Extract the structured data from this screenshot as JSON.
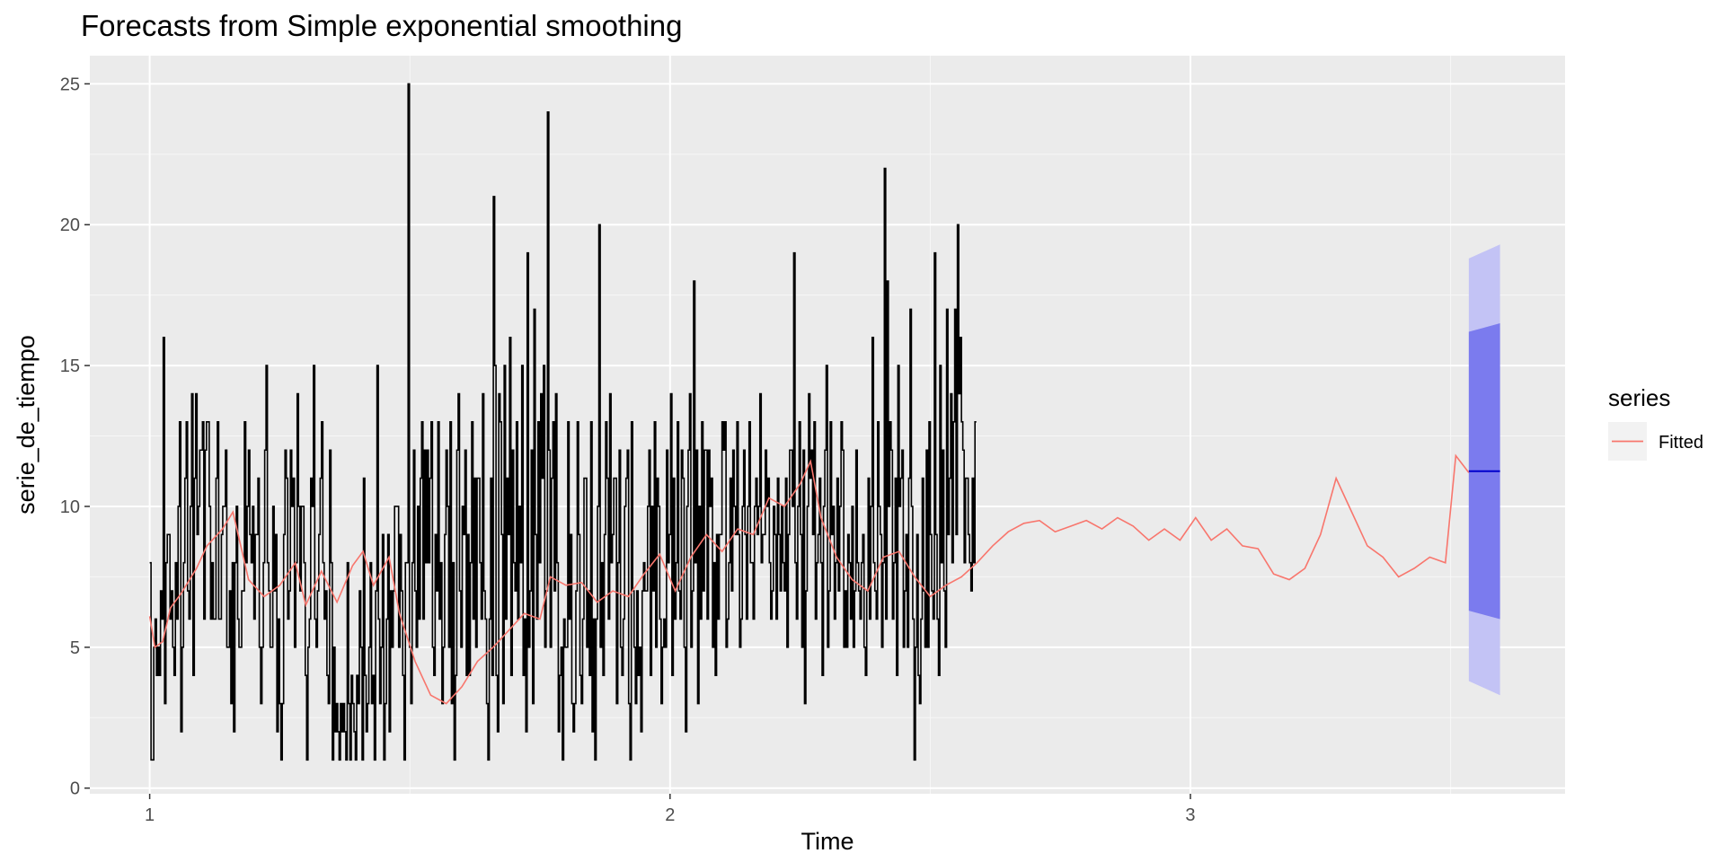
{
  "chart_data": {
    "type": "line",
    "title": "Forecasts from Simple exponential smoothing",
    "xlabel": "Time",
    "ylabel": "serie_de_tiempo",
    "xlim": [
      0.885,
      3.72
    ],
    "ylim": [
      -0.2,
      26.0
    ],
    "x_ticks": [
      1,
      2,
      3
    ],
    "x_tick_labels": [
      "1",
      "2",
      "3"
    ],
    "y_ticks": [
      0,
      5,
      10,
      15,
      20,
      25
    ],
    "y_tick_labels": [
      "0",
      "5",
      "10",
      "15",
      "20",
      "25"
    ],
    "grid": true,
    "legend": {
      "title": "series",
      "position": "right",
      "entries": [
        {
          "label": "Fitted",
          "color": "#F8766D"
        }
      ]
    },
    "colors": {
      "panel": "#EBEBEB",
      "grid_major": "#FFFFFF",
      "data": "#000000",
      "fitted": "#F8766D",
      "forecast_line": "#0000CC",
      "band_80": "#7B7BEE",
      "band_95": "#C3C3F5"
    },
    "data_series": {
      "name": "serie_de_tiempo",
      "x_start": 1.0,
      "x_step": 0.0026,
      "values": [
        8,
        1,
        1,
        5,
        6,
        4,
        5,
        4,
        7,
        6,
        16,
        3,
        8,
        9,
        9,
        6,
        7,
        5,
        4,
        8,
        6,
        10,
        13,
        2,
        5,
        8,
        11,
        13,
        7,
        6,
        10,
        14,
        4,
        11,
        14,
        9,
        10,
        12,
        12,
        13,
        6,
        12,
        13,
        13,
        10,
        6,
        8,
        6,
        6,
        11,
        13,
        6,
        6,
        9,
        10,
        10,
        12,
        5,
        5,
        7,
        3,
        8,
        2,
        8,
        10,
        6,
        5,
        5,
        7,
        7,
        13,
        8,
        10,
        12,
        9,
        8,
        10,
        6,
        9,
        9,
        11,
        5,
        3,
        5,
        8,
        12,
        15,
        8,
        7,
        5,
        5,
        10,
        7,
        9,
        2,
        6,
        3,
        1,
        3,
        9,
        12,
        11,
        6,
        7,
        12,
        10,
        11,
        5,
        8,
        14,
        10,
        7,
        10,
        10,
        8,
        4,
        1,
        5,
        6,
        11,
        10,
        15,
        6,
        5,
        7,
        9,
        11,
        13,
        8,
        6,
        7,
        4,
        3,
        12,
        8,
        1,
        5,
        2,
        3,
        2,
        1,
        3,
        2,
        3,
        2,
        1,
        8,
        3,
        1,
        4,
        3,
        2,
        1,
        4,
        3,
        7,
        5,
        1,
        11,
        4,
        2,
        3,
        5,
        8,
        3,
        4,
        1,
        7,
        15,
        6,
        3,
        5,
        9,
        1,
        3,
        6,
        9,
        2,
        7,
        5,
        7,
        10,
        10,
        10,
        5,
        9,
        7,
        4,
        1,
        8,
        8,
        25,
        5,
        3,
        8,
        12,
        7,
        5,
        10,
        6,
        11,
        13,
        6,
        12,
        8,
        12,
        8,
        11,
        13,
        5,
        4,
        9,
        7,
        13,
        6,
        8,
        3,
        5,
        9,
        12,
        10,
        5,
        13,
        3,
        8,
        1,
        4,
        12,
        14,
        7,
        5,
        10,
        9,
        12,
        4,
        9,
        4,
        8,
        13,
        6,
        11,
        5,
        11,
        11,
        8,
        6,
        14,
        7,
        6,
        3,
        1,
        6,
        11,
        4,
        21,
        15,
        4,
        2,
        14,
        13,
        9,
        3,
        15,
        6,
        11,
        9,
        16,
        4,
        12,
        8,
        7,
        13,
        6,
        10,
        8,
        15,
        4,
        6,
        2,
        19,
        5,
        7,
        12,
        3,
        17,
        9,
        6,
        13,
        8,
        14,
        11,
        15,
        5,
        7,
        24,
        12,
        5,
        11,
        13,
        7,
        14,
        8,
        2,
        4,
        5,
        1,
        6,
        5,
        5,
        13,
        6,
        9,
        3,
        2,
        3,
        7,
        13,
        9,
        4,
        3,
        6,
        11,
        11,
        5,
        7,
        4,
        13,
        2,
        6,
        1,
        6,
        10,
        20,
        5,
        8,
        4,
        9,
        13,
        11,
        6,
        14,
        8,
        9,
        11,
        11,
        3,
        8,
        12,
        5,
        4,
        6,
        10,
        11,
        12,
        3,
        1,
        13,
        7,
        5,
        3,
        7,
        4,
        5,
        2,
        7,
        8,
        7,
        7,
        10,
        12,
        4,
        10,
        7,
        13,
        5,
        11,
        10,
        6,
        3,
        5,
        6,
        5,
        12,
        8,
        9,
        14,
        4,
        11,
        6,
        8,
        13,
        7,
        6,
        12,
        11,
        5,
        2,
        10,
        12,
        14,
        5,
        7,
        18,
        8,
        12,
        3,
        10,
        6,
        13,
        7,
        12,
        12,
        6,
        12,
        10,
        11,
        5,
        8,
        4,
        9,
        6,
        9,
        9,
        13,
        12,
        13,
        5,
        6,
        8,
        11,
        7,
        12,
        10,
        9,
        13,
        9,
        5,
        6,
        10,
        12,
        9,
        6,
        10,
        13,
        8,
        8,
        6,
        10,
        11,
        9,
        10,
        14,
        8,
        9,
        9,
        12,
        10,
        11,
        8,
        6,
        7,
        10,
        9,
        6,
        11,
        9,
        7,
        10,
        8,
        7,
        11,
        5,
        9,
        12,
        12,
        10,
        19,
        8,
        6,
        10,
        13,
        9,
        5,
        12,
        3,
        7,
        10,
        14,
        11,
        12,
        9,
        13,
        6,
        8,
        9,
        11,
        8,
        4,
        10,
        12,
        15,
        5,
        7,
        13,
        9,
        10,
        6,
        8,
        11,
        7,
        10,
        13,
        12,
        5,
        7,
        5,
        9,
        8,
        6,
        10,
        5,
        7,
        12,
        8,
        7,
        6,
        8,
        9,
        5,
        4,
        7,
        11,
        6,
        10,
        16,
        8,
        7,
        6,
        13,
        10,
        9,
        5,
        8,
        22,
        6,
        18,
        10,
        13,
        12,
        6,
        8,
        11,
        4,
        15,
        10,
        11,
        12,
        5,
        7,
        9,
        5,
        11,
        17,
        10,
        6,
        1,
        5,
        9,
        4,
        3,
        6,
        11,
        7,
        5,
        12,
        5,
        13,
        9,
        7,
        6,
        19,
        9,
        6,
        4,
        15,
        8,
        12,
        7,
        5,
        17,
        9,
        11,
        14,
        8,
        13,
        17,
        9,
        20,
        14,
        16,
        13,
        12,
        8,
        11,
        11,
        9,
        8,
        7,
        11,
        8,
        13
      ]
    },
    "fitted_series": {
      "name": "Fitted",
      "points": [
        [
          1.0,
          6.1
        ],
        [
          1.01,
          5.0
        ],
        [
          1.025,
          5.2
        ],
        [
          1.04,
          6.4
        ],
        [
          1.06,
          6.9
        ],
        [
          1.09,
          7.8
        ],
        [
          1.11,
          8.6
        ],
        [
          1.14,
          9.2
        ],
        [
          1.16,
          9.8
        ],
        [
          1.19,
          7.4
        ],
        [
          1.22,
          6.8
        ],
        [
          1.25,
          7.2
        ],
        [
          1.28,
          8.0
        ],
        [
          1.3,
          6.5
        ],
        [
          1.33,
          7.7
        ],
        [
          1.36,
          6.6
        ],
        [
          1.39,
          7.9
        ],
        [
          1.41,
          8.4
        ],
        [
          1.43,
          7.2
        ],
        [
          1.46,
          8.2
        ],
        [
          1.48,
          6.2
        ],
        [
          1.51,
          4.5
        ],
        [
          1.54,
          3.3
        ],
        [
          1.57,
          3.0
        ],
        [
          1.6,
          3.6
        ],
        [
          1.63,
          4.5
        ],
        [
          1.66,
          5.0
        ],
        [
          1.69,
          5.6
        ],
        [
          1.72,
          6.2
        ],
        [
          1.75,
          6.0
        ],
        [
          1.77,
          7.5
        ],
        [
          1.8,
          7.2
        ],
        [
          1.83,
          7.3
        ],
        [
          1.86,
          6.6
        ],
        [
          1.89,
          7.0
        ],
        [
          1.92,
          6.8
        ],
        [
          1.95,
          7.6
        ],
        [
          1.98,
          8.3
        ],
        [
          2.01,
          7.0
        ],
        [
          2.04,
          8.2
        ],
        [
          2.07,
          9.0
        ],
        [
          2.1,
          8.4
        ],
        [
          2.13,
          9.2
        ],
        [
          2.16,
          9.0
        ],
        [
          2.19,
          10.3
        ],
        [
          2.22,
          10.0
        ],
        [
          2.25,
          10.8
        ],
        [
          2.27,
          11.6
        ],
        [
          2.29,
          9.6
        ],
        [
          2.32,
          8.2
        ],
        [
          2.35,
          7.4
        ],
        [
          2.38,
          7.0
        ],
        [
          2.41,
          8.2
        ],
        [
          2.44,
          8.4
        ],
        [
          2.47,
          7.5
        ],
        [
          2.5,
          6.8
        ],
        [
          2.53,
          7.2
        ],
        [
          2.56,
          7.5
        ],
        [
          2.59,
          8.0
        ],
        [
          2.62,
          8.6
        ],
        [
          2.65,
          9.1
        ],
        [
          2.68,
          9.4
        ],
        [
          2.71,
          9.5
        ],
        [
          2.74,
          9.1
        ],
        [
          2.77,
          9.3
        ],
        [
          2.8,
          9.5
        ],
        [
          2.83,
          9.2
        ],
        [
          2.86,
          9.6
        ],
        [
          2.89,
          9.3
        ],
        [
          2.92,
          8.8
        ],
        [
          2.95,
          9.2
        ],
        [
          2.98,
          8.8
        ],
        [
          3.01,
          9.6
        ],
        [
          3.04,
          8.8
        ],
        [
          3.07,
          9.2
        ],
        [
          3.1,
          8.6
        ],
        [
          3.13,
          8.5
        ],
        [
          3.16,
          7.6
        ],
        [
          3.19,
          7.4
        ],
        [
          3.22,
          7.8
        ],
        [
          3.25,
          9.0
        ],
        [
          3.28,
          11.0
        ],
        [
          3.31,
          9.8
        ],
        [
          3.34,
          8.6
        ],
        [
          3.37,
          8.2
        ],
        [
          3.4,
          7.5
        ],
        [
          3.43,
          7.8
        ],
        [
          3.46,
          8.2
        ],
        [
          3.49,
          8.0
        ],
        [
          3.51,
          11.8
        ],
        [
          3.535,
          11.2
        ]
      ]
    },
    "forecast": {
      "x": [
        3.535,
        3.595
      ],
      "mean": 11.25,
      "lo80": [
        6.3,
        6.0
      ],
      "hi80": [
        16.2,
        16.5
      ],
      "lo95": [
        3.8,
        3.3
      ],
      "hi95": [
        18.8,
        19.3
      ]
    }
  }
}
